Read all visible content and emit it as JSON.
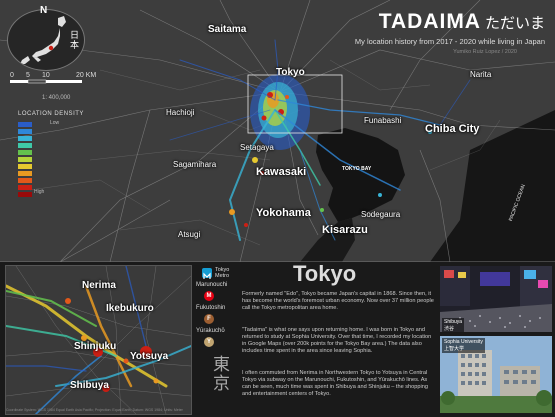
{
  "header": {
    "title": "TADAIMA",
    "title_jp": "ただいま",
    "subtitle": "My location history from 2017 - 2020 while living in Japan",
    "author": "Yumiko Ruiz Lopez / 2020"
  },
  "inset": {
    "north": "N",
    "country_label": "日本"
  },
  "scale": {
    "labels": [
      "0",
      "5",
      "10",
      "20 KM"
    ],
    "ratio": "1: 400,000"
  },
  "legend": {
    "title": "LOCATION DENSITY",
    "low": "Low",
    "high": "High",
    "colors": [
      "#2a5dc8",
      "#2f87d8",
      "#38b4d6",
      "#3fc9a8",
      "#64c24d",
      "#b6d43a",
      "#e6c92f",
      "#e89a22",
      "#e2591a",
      "#cc1f14",
      "#990a0a"
    ]
  },
  "main_map": {
    "cities": [
      {
        "name": "Saitama",
        "size": "md"
      },
      {
        "name": "Tokyo",
        "size": "md"
      },
      {
        "name": "Narita",
        "size": "sm"
      },
      {
        "name": "Hachioji",
        "size": "sm"
      },
      {
        "name": "Funabashi",
        "size": "sm"
      },
      {
        "name": "Chiba City",
        "size": "lg"
      },
      {
        "name": "Setagaya",
        "size": "sm"
      },
      {
        "name": "Sagamihara",
        "size": "sm"
      },
      {
        "name": "Kawasaki",
        "size": "lg"
      },
      {
        "name": "Yokohama",
        "size": "lg"
      },
      {
        "name": "Atsugi",
        "size": "sm"
      },
      {
        "name": "Sodegaura",
        "size": "sm"
      },
      {
        "name": "Kisarazu",
        "size": "lg"
      }
    ],
    "sea_label": "TOKYO BAY",
    "ocean_label": "PACIFIC OCEAN"
  },
  "detail_map": {
    "places": [
      {
        "name": "Nerima"
      },
      {
        "name": "Ikebukuro"
      },
      {
        "name": "Shinjuku"
      },
      {
        "name": "Yotsuya"
      },
      {
        "name": "Shibuya"
      }
    ],
    "credit": "Coordinate System: WGS 1984 Equal Earth Asia Pacific; Projection: Equal Earth; Datum: WGS 1984; Units: Meter"
  },
  "metro": {
    "logo_text": "Tokyo Metro",
    "lines": [
      {
        "name": "Marunouchi",
        "letter": "M",
        "color": "#e60012"
      },
      {
        "name": "Fukutoshin",
        "letter": "F",
        "color": "#9c5e31"
      },
      {
        "name": "Yūrakuchō",
        "letter": "Y",
        "color": "#c1a470"
      }
    ],
    "kanji": "東京"
  },
  "article": {
    "title": "Tokyo",
    "paragraphs": [
      "Formerly named \"Edo\", Tokyo became Japan's capital in 1868. Since then, it has become the world's foremost urban economy. Now over 37 million people call the Tokyo metropolitan area home.",
      "\"Tadaima\" is what one says upon returning home. I was born in Tokyo and returned to study at Sophia University. Over that time, I recorded my location in Google Maps (over 200k points for the Tokyo Bay area.) The data also includes time spent in the area since leaving Sophia.",
      "I often commuted from Nerima in Northwestern Tokyo to Yotsuya in Central Tokyo via subway on the Marunouchi, Fukutoshin, and Yūrakuchō lines. As can be seen, much time was spent in Shibuya and Shinjuku – the shopping and entertainment centers of Tokyo."
    ]
  },
  "photos": {
    "shibuya_label": "Shibuya",
    "shibuya_jp": "渋谷",
    "sophia_label": "Sophia University",
    "sophia_jp": "上智大学"
  }
}
